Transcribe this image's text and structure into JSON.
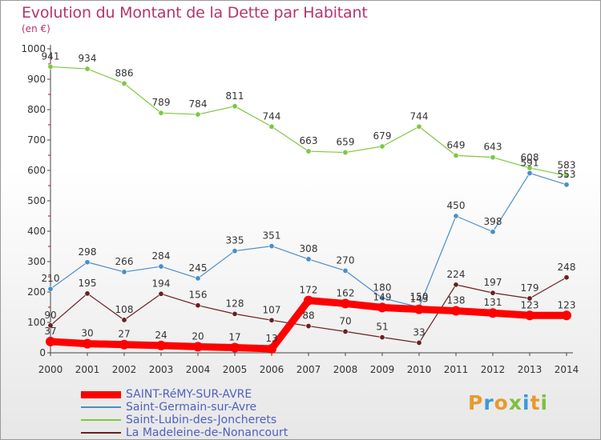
{
  "title": "Evolution du Montant de la Dette par Habitant",
  "subtitle": "(en €)",
  "logo": [
    "P",
    "r",
    "o",
    "x",
    "i",
    "t",
    "i"
  ],
  "logo_colors": [
    "#e89a2c",
    "#3a9ad9",
    "#e89a2c",
    "#7cc043",
    "#3a9ad9",
    "#e89a2c",
    "#7cc043"
  ],
  "chart_data": {
    "type": "line",
    "x": [
      "2000",
      "2001",
      "2002",
      "2003",
      "2004",
      "2005",
      "2006",
      "2007",
      "2008",
      "2009",
      "2010",
      "2011",
      "2012",
      "2013",
      "2014"
    ],
    "ylim": [
      0,
      1000
    ],
    "yticks": [
      "0",
      "100",
      "200",
      "300",
      "400",
      "500",
      "600",
      "700",
      "800",
      "900",
      "1000"
    ],
    "grid": false,
    "legend": "bottom",
    "series": [
      {
        "name": "Saint-Lubin-des-Joncherets",
        "color": "#7cc843",
        "values": [
          941,
          934,
          886,
          789,
          784,
          811,
          744,
          663,
          659,
          679,
          744,
          649,
          643,
          608,
          583
        ]
      },
      {
        "name": "Saint-Germain-sur-Avre",
        "color": "#4a8ec8",
        "values": [
          210,
          298,
          266,
          284,
          245,
          335,
          351,
          308,
          270,
          180,
          150,
          450,
          398,
          591,
          553
        ]
      },
      {
        "name": "La Madeleine-de-Nonancourt",
        "color": "#6b1f1f",
        "values": [
          90,
          195,
          108,
          194,
          156,
          128,
          107,
          88,
          70,
          51,
          33,
          224,
          197,
          179,
          248
        ]
      },
      {
        "name": "SAINT-RéMY-SUR-AVRE",
        "color": "#ff0000",
        "values": [
          37,
          30,
          27,
          24,
          20,
          17,
          13,
          172,
          162,
          149,
          143,
          138,
          131,
          123,
          123
        ]
      }
    ]
  },
  "legend_items": [
    {
      "label": "SAINT-RéMY-SUR-AVRE",
      "color": "#ff0000"
    },
    {
      "label": "Saint-Germain-sur-Avre",
      "color": "#4a8ec8"
    },
    {
      "label": "Saint-Lubin-des-Joncherets",
      "color": "#7cc843"
    },
    {
      "label": "La Madeleine-de-Nonancourt",
      "color": "#6b1f1f"
    }
  ]
}
